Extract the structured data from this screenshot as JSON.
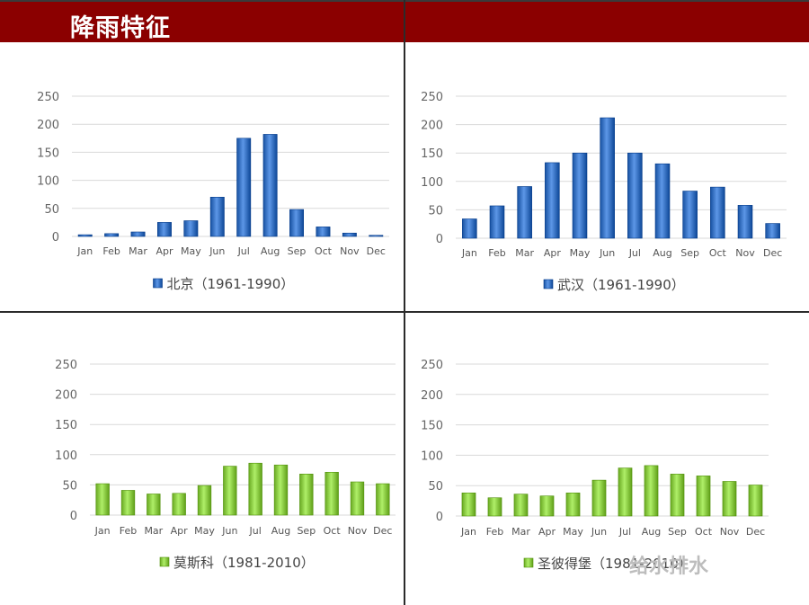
{
  "header": {
    "title": "降雨特征"
  },
  "watermark": "给水排水",
  "colors": {
    "header_bg": "#8b0000",
    "blue_bar": "#3a74c4",
    "green_bar": "#8ccc45"
  },
  "chart_data": [
    {
      "type": "bar",
      "categories": [
        "Jan",
        "Feb",
        "Mar",
        "Apr",
        "May",
        "Jun",
        "Jul",
        "Aug",
        "Sep",
        "Oct",
        "Nov",
        "Dec"
      ],
      "series": [
        {
          "name": "北京（1961-1990）",
          "values": [
            3,
            5,
            8,
            25,
            28,
            70,
            175,
            182,
            48,
            17,
            6,
            2
          ]
        }
      ],
      "ylim": [
        0,
        250
      ],
      "yticks": [
        0,
        50,
        100,
        150,
        200,
        250
      ],
      "grid": true,
      "legend": "bottom",
      "color": "#3a74c4"
    },
    {
      "type": "bar",
      "categories": [
        "Jan",
        "Feb",
        "Mar",
        "Apr",
        "May",
        "Jun",
        "Jul",
        "Aug",
        "Sep",
        "Oct",
        "Nov",
        "Dec"
      ],
      "series": [
        {
          "name": "武汉（1961-1990）",
          "values": [
            34,
            57,
            91,
            133,
            150,
            212,
            150,
            131,
            83,
            90,
            58,
            26
          ]
        }
      ],
      "ylim": [
        0,
        250
      ],
      "yticks": [
        0,
        50,
        100,
        150,
        200,
        250
      ],
      "grid": true,
      "legend": "bottom",
      "color": "#3a74c4"
    },
    {
      "type": "bar",
      "categories": [
        "Jan",
        "Feb",
        "Mar",
        "Apr",
        "May",
        "Jun",
        "Jul",
        "Aug",
        "Sep",
        "Oct",
        "Nov",
        "Dec"
      ],
      "series": [
        {
          "name": "莫斯科（1981-2010）",
          "values": [
            52,
            41,
            35,
            36,
            49,
            81,
            86,
            83,
            68,
            71,
            55,
            52
          ]
        }
      ],
      "ylim": [
        0,
        250
      ],
      "yticks": [
        0,
        50,
        100,
        150,
        200,
        250
      ],
      "grid": true,
      "legend": "bottom",
      "color": "#8ccc45"
    },
    {
      "type": "bar",
      "categories": [
        "Jan",
        "Feb",
        "Mar",
        "Apr",
        "May",
        "Jun",
        "Jul",
        "Aug",
        "Sep",
        "Oct",
        "Nov",
        "Dec"
      ],
      "series": [
        {
          "name": "圣彼得堡（1981-2010）",
          "values": [
            38,
            30,
            36,
            33,
            38,
            59,
            79,
            83,
            69,
            66,
            57,
            51
          ]
        }
      ],
      "ylim": [
        0,
        250
      ],
      "yticks": [
        0,
        50,
        100,
        150,
        200,
        250
      ],
      "grid": true,
      "legend": "bottom",
      "color": "#8ccc45"
    }
  ]
}
